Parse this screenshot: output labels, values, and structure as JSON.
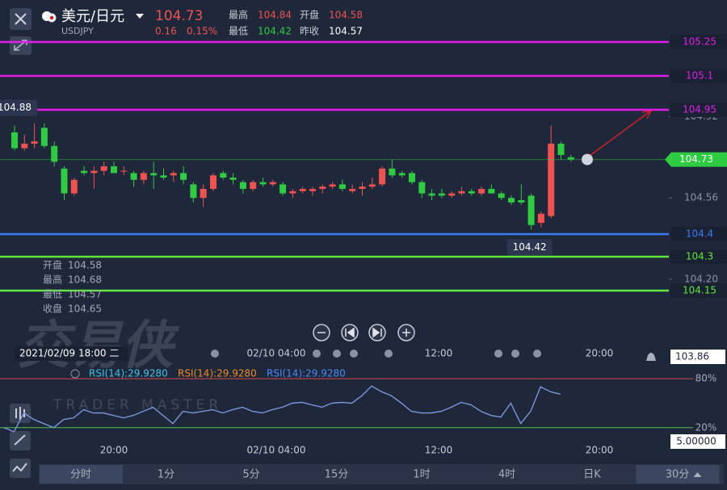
{
  "header": {
    "symbol": "美元/日元",
    "code": "USDJPY",
    "price": "104.73",
    "change": "0.16",
    "change_pct": "0.15%",
    "stats": [
      {
        "label": "最高",
        "value": "104.84",
        "color": "#f0524f"
      },
      {
        "label": "开盘",
        "value": "104.58",
        "color": "#f0524f"
      },
      {
        "label": "最低",
        "value": "104.42",
        "color": "#2ecc40"
      },
      {
        "label": "昨收",
        "value": "104.57",
        "color": "#ffffff"
      }
    ]
  },
  "chart_data": [
    {
      "type": "candlestick",
      "open": [
        104.85,
        104.78,
        104.8,
        104.87,
        104.79,
        104.69,
        104.58,
        104.68,
        104.67,
        104.68,
        104.7,
        104.68,
        104.67,
        104.64,
        104.67,
        104.66,
        104.66,
        104.67,
        104.62,
        104.56,
        104.6,
        104.67,
        104.65,
        104.63,
        104.6,
        104.63,
        104.62,
        104.62,
        104.58,
        104.59,
        104.59,
        104.6,
        104.61,
        104.62,
        104.59,
        104.6,
        104.61,
        104.62,
        104.69,
        104.67,
        104.67,
        104.63,
        104.58,
        104.58,
        104.57,
        104.58,
        104.59,
        104.58,
        104.6,
        104.58,
        104.56,
        104.55,
        104.57,
        104.45,
        104.48,
        104.8,
        104.74
      ],
      "high": [
        104.88,
        104.84,
        104.89,
        104.89,
        104.81,
        104.7,
        104.65,
        104.7,
        104.7,
        104.72,
        104.72,
        104.7,
        104.68,
        104.68,
        104.72,
        104.69,
        104.68,
        104.7,
        104.63,
        104.62,
        104.67,
        104.68,
        104.67,
        104.64,
        104.64,
        104.65,
        104.64,
        104.63,
        104.6,
        104.61,
        104.61,
        104.62,
        104.63,
        104.64,
        104.62,
        104.63,
        104.65,
        104.7,
        104.73,
        104.68,
        104.68,
        104.64,
        104.6,
        104.6,
        104.59,
        104.61,
        104.6,
        104.61,
        104.62,
        104.59,
        104.57,
        104.62,
        104.58,
        104.5,
        104.88,
        104.81,
        104.75
      ],
      "low": [
        104.77,
        104.77,
        104.78,
        104.78,
        104.7,
        104.55,
        104.57,
        104.66,
        104.6,
        104.66,
        104.67,
        104.66,
        104.61,
        104.62,
        104.6,
        104.64,
        104.63,
        104.62,
        104.54,
        104.52,
        104.59,
        104.64,
        104.62,
        104.58,
        104.59,
        104.61,
        104.61,
        104.57,
        104.56,
        104.58,
        104.57,
        104.58,
        104.6,
        104.59,
        104.58,
        104.57,
        104.6,
        104.61,
        104.65,
        104.65,
        104.62,
        104.56,
        104.55,
        104.56,
        104.56,
        104.57,
        104.57,
        104.57,
        104.58,
        104.55,
        104.53,
        104.53,
        104.42,
        104.43,
        104.47,
        104.73,
        104.72
      ],
      "close": [
        104.78,
        104.8,
        104.81,
        104.79,
        104.72,
        104.58,
        104.64,
        104.67,
        104.68,
        104.7,
        104.67,
        104.68,
        104.64,
        104.67,
        104.66,
        104.65,
        104.67,
        104.64,
        104.56,
        104.6,
        104.66,
        104.65,
        104.64,
        104.6,
        104.63,
        104.62,
        104.63,
        104.58,
        104.59,
        104.6,
        104.6,
        104.61,
        104.62,
        104.6,
        104.6,
        104.61,
        104.62,
        104.69,
        104.66,
        104.66,
        104.63,
        104.58,
        104.57,
        104.57,
        104.58,
        104.59,
        104.58,
        104.6,
        104.58,
        104.56,
        104.54,
        104.54,
        104.44,
        104.49,
        104.8,
        104.75,
        104.73
      ],
      "up_color": "#f0524f",
      "down_color": "#2ecc40",
      "ylim": [
        104.0,
        105.3
      ],
      "yticks": [
        {
          "value": 104.2,
          "label": "104.20"
        },
        104.56,
        104.92
      ],
      "levels": [
        {
          "value": 105.25,
          "color": "#e21ee6"
        },
        {
          "value": 105.1,
          "color": "#e21ee6"
        },
        {
          "value": 104.95,
          "color": "#e21ee6"
        },
        {
          "value": 104.4,
          "color": "#3a7bf0"
        },
        {
          "value": 104.3,
          "color": "#5ee83a"
        },
        {
          "value": 104.15,
          "color": "#5ee83a"
        }
      ],
      "last_price": 104.73,
      "high_marker": 104.88,
      "low_marker": 104.42,
      "ohlc_info": [
        {
          "label": "开盘",
          "value": "104.58"
        },
        {
          "label": "最高",
          "value": "104.68"
        },
        {
          "label": "最低",
          "value": "104.57"
        },
        {
          "label": "收盘",
          "value": "104.65"
        }
      ],
      "crosshair": {
        "time": "2021/02/09 18:00 二",
        "price": "103.86"
      },
      "x_labels": [
        "02/10 04:00",
        "12:00",
        "20:00"
      ]
    },
    {
      "type": "line",
      "legend": [
        {
          "name": "RSI(14):29.9280",
          "color": "#3fc4e6"
        },
        {
          "name": "RSI(14):29.9280",
          "color": "#ee8a22"
        },
        {
          "name": "RSI(14):29.9280",
          "color": "#4a8af5"
        }
      ],
      "color": "#7d9de3",
      "values": [
        20,
        15,
        38,
        30,
        25,
        20,
        30,
        32,
        42,
        38,
        38,
        35,
        32,
        35,
        40,
        45,
        35,
        25,
        40,
        38,
        40,
        42,
        38,
        42,
        45,
        40,
        38,
        42,
        45,
        50,
        51,
        48,
        45,
        50,
        51,
        50,
        59,
        71,
        64,
        59,
        50,
        40,
        38,
        38,
        40,
        45,
        51,
        48,
        40,
        35,
        33,
        50,
        25,
        40,
        70,
        64,
        61
      ],
      "ylim": [
        0,
        88
      ],
      "yticks": [
        {
          "value": 80,
          "label": "80%",
          "color": "#d24a4a"
        },
        {
          "value": 20,
          "label": "20%",
          "color": "#4ec24e"
        }
      ],
      "value_box": "5.00000",
      "x_labels": [
        "20:00",
        "02/10 04:00",
        "12:00",
        "20:00"
      ]
    }
  ],
  "watermark": {
    "title": "交易侠",
    "subtitle": "TRADER MASTER"
  },
  "tabs": [
    "分时",
    "1分",
    "5分",
    "15分",
    "1时",
    "4时",
    "日K",
    "30分"
  ]
}
